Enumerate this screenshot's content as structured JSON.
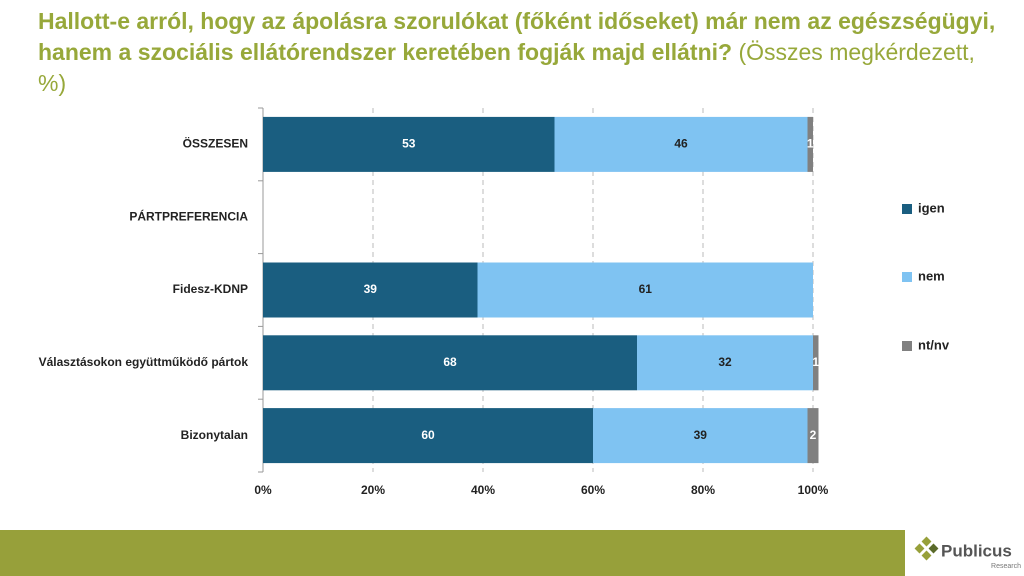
{
  "chart_data": {
    "type": "stacked-bar-horizontal",
    "title": "Hallott-e arról, hogy az ápolásra szorulókat (főként időseket) már nem az egészségügyi, hanem a szociális ellátórendszer keretében fogják majd ellátni?",
    "subtitle": "(Összes megkérdezett, %)",
    "categories": [
      "ÖSSZESEN",
      "PÁRTPREFERENCIA",
      "Fidesz-KDNP",
      "Választásokon együttműködő pártok",
      "Bizonytalan"
    ],
    "series": [
      {
        "name": "igen",
        "color": "#1a5e80",
        "values": [
          53,
          null,
          39,
          68,
          60
        ]
      },
      {
        "name": "nem",
        "color": "#7fc3f2",
        "values": [
          46,
          null,
          61,
          32,
          39
        ]
      },
      {
        "name": "nt/nv",
        "color": "#808080",
        "values": [
          1,
          null,
          null,
          1,
          2
        ]
      }
    ],
    "xlim": [
      0,
      100
    ],
    "xticks": [
      {
        "value": 0,
        "label": "0%"
      },
      {
        "value": 20,
        "label": "20%"
      },
      {
        "value": 40,
        "label": "40%"
      },
      {
        "value": 60,
        "label": "60%"
      },
      {
        "value": 80,
        "label": "80%"
      },
      {
        "value": 100,
        "label": "100%"
      }
    ],
    "grid": true,
    "legend": "right"
  },
  "footer": {
    "logo": "Publicus",
    "logo_sub": "Research"
  }
}
